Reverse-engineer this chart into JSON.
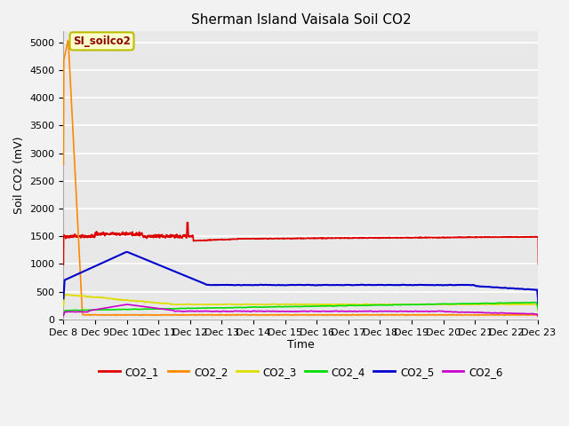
{
  "title": "Sherman Island Vaisala Soil CO2",
  "ylabel": "Soil CO2 (mV)",
  "xlabel": "Time",
  "annotation_text": "SI_soilco2",
  "ylim": [
    0,
    5200
  ],
  "yticks": [
    0,
    500,
    1000,
    1500,
    2000,
    2500,
    3000,
    3500,
    4000,
    4500,
    5000
  ],
  "xtick_labels": [
    "Dec 8",
    "Dec 9",
    "Dec 10",
    "Dec 11",
    "Dec 12",
    "Dec 13",
    "Dec 14",
    "Dec 15",
    "Dec 16",
    "Dec 17",
    "Dec 18",
    "Dec 19",
    "Dec 20",
    "Dec 21",
    "Dec 22",
    "Dec 23"
  ],
  "plot_bg_color": "#e8e8e8",
  "fig_bg_color": "#f2f2f2",
  "grid_color": "#ffffff",
  "series": {
    "CO2_1": {
      "color": "#dd0000",
      "linewidth": 1.2
    },
    "CO2_2": {
      "color": "#ff8800",
      "linewidth": 1.2
    },
    "CO2_3": {
      "color": "#dddd00",
      "linewidth": 1.2
    },
    "CO2_4": {
      "color": "#00dd00",
      "linewidth": 1.2
    },
    "CO2_5": {
      "color": "#0000cc",
      "linewidth": 1.5
    },
    "CO2_6": {
      "color": "#cc00cc",
      "linewidth": 1.2
    }
  },
  "legend_entries": [
    "CO2_1",
    "CO2_2",
    "CO2_3",
    "CO2_4",
    "CO2_5",
    "CO2_6"
  ]
}
